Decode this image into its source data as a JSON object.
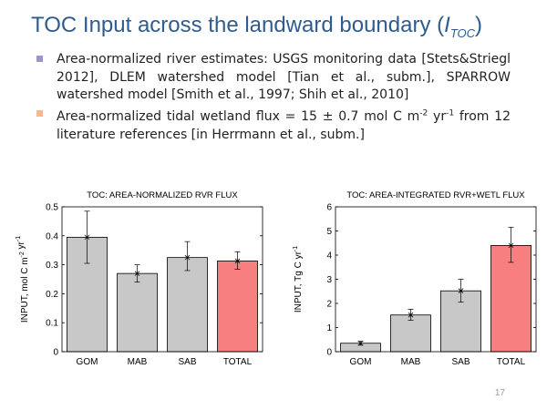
{
  "slide": {
    "title_prefix": "TOC Input across the landward boundary (",
    "title_symbol": "I",
    "title_subscript": "TOC",
    "title_suffix": ")",
    "page_number": "17",
    "bullet_colors": [
      "#9b96cc",
      "#f5b98c"
    ],
    "bullets": [
      {
        "text": "Area-normalized river estimates: USGS monitoring data [Stets&Striegl 2012], DLEM watershed model [Tian et al., subm.], SPARROW watershed model [Smith et al., 1997; Shih et al., 2010]"
      },
      {
        "part1": "Area-normalized tidal wetland flux = 15 ± 0.7 mol C m",
        "sup1": "-2",
        "part2": " yr",
        "sup2": "-1",
        "part3": " from 12 literature references [in Herrmann et al., subm.]"
      }
    ]
  },
  "chart_data": [
    {
      "type": "bar",
      "title": "TOC: AREA-NORMALIZED RVR FLUX",
      "ylabel": "INPUT, mol C m-2 yr-1",
      "categories": [
        "GOM",
        "MAB",
        "SAB",
        "TOTAL"
      ],
      "values": [
        0.395,
        0.27,
        0.325,
        0.313
      ],
      "error_low": [
        0.305,
        0.24,
        0.28,
        0.285
      ],
      "error_high": [
        0.485,
        0.3,
        0.38,
        0.345
      ],
      "ylim": [
        0,
        0.5
      ],
      "yticks": [
        0,
        0.1,
        0.2,
        0.3,
        0.4,
        0.5
      ],
      "ytick_labels": [
        "0",
        "0.1",
        "0.2",
        "0.3",
        "0.4",
        "0.5"
      ],
      "bar_colors": [
        "#c8c8c8",
        "#c8c8c8",
        "#c8c8c8",
        "#f77f7f"
      ],
      "grid": false
    },
    {
      "type": "bar",
      "title": "TOC: AREA-INTEGRATED RVR+WETL FLUX",
      "ylabel": "INPUT, Tg C yr-1",
      "categories": [
        "GOM",
        "MAB",
        "SAB",
        "TOTAL"
      ],
      "values": [
        0.35,
        1.52,
        2.52,
        4.4
      ],
      "error_low": [
        0.27,
        1.3,
        2.05,
        3.7
      ],
      "error_high": [
        0.43,
        1.76,
        3.0,
        5.15
      ],
      "ylim": [
        0,
        6
      ],
      "yticks": [
        0,
        1,
        2,
        3,
        4,
        5,
        6
      ],
      "ytick_labels": [
        "0",
        "1",
        "2",
        "3",
        "4",
        "5",
        "6"
      ],
      "bar_colors": [
        "#c8c8c8",
        "#c8c8c8",
        "#c8c8c8",
        "#f77f7f"
      ],
      "grid": false
    }
  ]
}
